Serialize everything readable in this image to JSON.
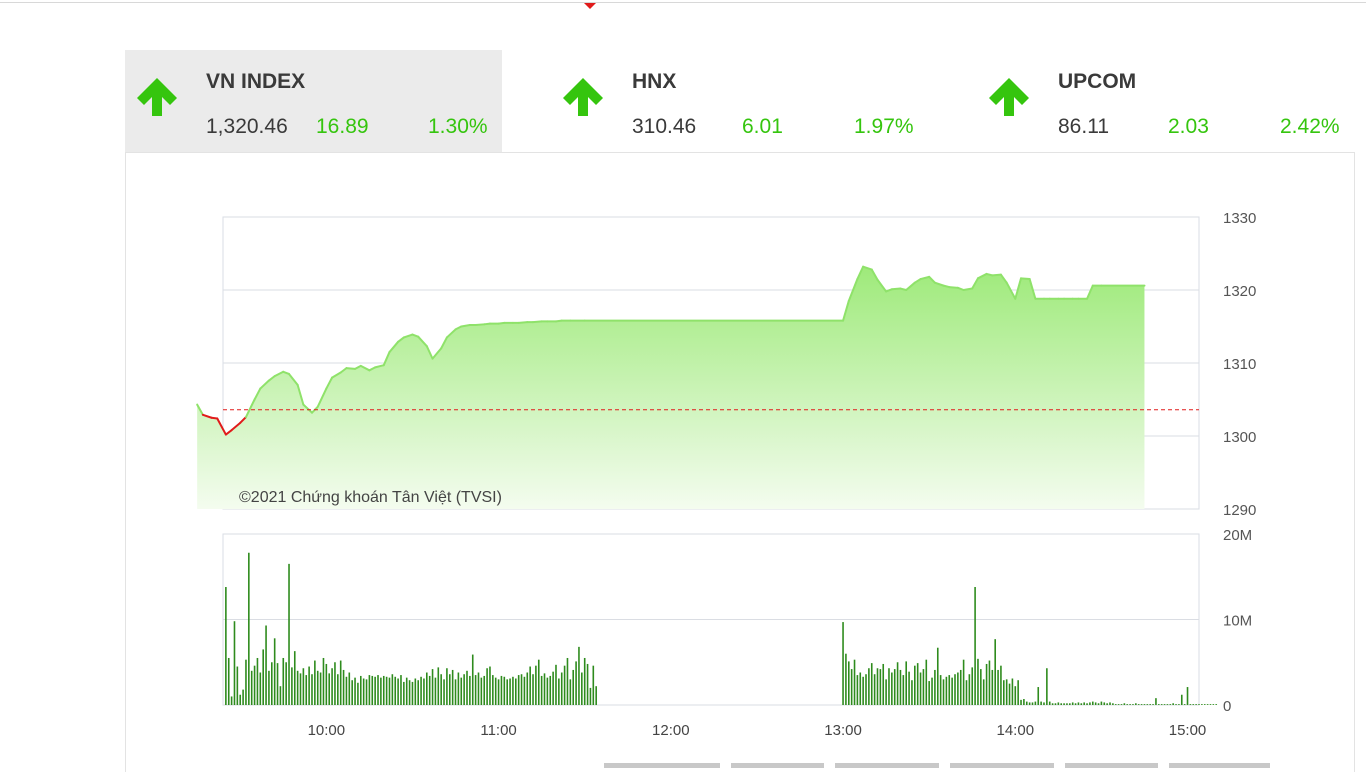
{
  "indices": [
    {
      "name": "VN INDEX",
      "value": "1,320.46",
      "change": "16.89",
      "percent": "1.30%",
      "direction": "up",
      "active": true
    },
    {
      "name": "HNX",
      "value": "310.46",
      "change": "6.01",
      "percent": "1.97%",
      "direction": "up",
      "active": false
    },
    {
      "name": "UPCOM",
      "value": "86.11",
      "change": "2.03",
      "percent": "2.42%",
      "direction": "up",
      "active": false
    }
  ],
  "colors": {
    "up": "#35c50e",
    "down": "#e11b1b",
    "reference": "#e11b1b",
    "area_fill_top": "#9eea7a",
    "volume": "#2e8b1d"
  },
  "chart_data": [
    {
      "type": "area",
      "watermark": "©2021 Chứng khoán Tân Việt (TVSI)",
      "reference_value": 1303.6,
      "ylim": [
        1290,
        1330
      ],
      "y_ticks": [
        "1330",
        "1320",
        "1310",
        "1300",
        "1290"
      ],
      "grid": true,
      "series": [
        {
          "x": [
            "09:15",
            "09:17",
            "09:20",
            "09:22",
            "09:25",
            "09:27",
            "09:30",
            "09:32",
            "09:35",
            "09:37",
            "09:40",
            "09:42",
            "09:45",
            "09:47",
            "09:50",
            "09:52",
            "09:55",
            "09:57",
            "10:00",
            "10:02",
            "10:05",
            "10:07",
            "10:10",
            "10:12",
            "10:15",
            "10:17",
            "10:20",
            "10:22",
            "10:25",
            "10:27",
            "10:30",
            "10:32",
            "10:35",
            "10:37",
            "10:40",
            "10:42",
            "10:45",
            "10:47",
            "10:50",
            "10:52",
            "10:55",
            "10:57",
            "11:00",
            "11:02",
            "11:05",
            "11:07",
            "11:10",
            "11:12",
            "11:15",
            "11:17",
            "11:20",
            "11:22",
            "11:25",
            "11:30",
            "13:00",
            "13:02",
            "13:05",
            "13:07",
            "13:10",
            "13:12",
            "13:15",
            "13:17",
            "13:20",
            "13:22",
            "13:25",
            "13:27",
            "13:30",
            "13:32",
            "13:35",
            "13:37",
            "13:40",
            "13:42",
            "13:45",
            "13:47",
            "13:50",
            "13:52",
            "13:55",
            "13:57",
            "14:00",
            "14:02",
            "14:05",
            "14:07",
            "14:10",
            "14:12",
            "14:15",
            "14:17",
            "14:20",
            "14:22",
            "14:25",
            "14:27",
            "14:30",
            "14:45"
          ],
          "values": [
            1304.3,
            1302.9,
            1302.5,
            1302.4,
            1300.2,
            1300.8,
            1301.8,
            1302.6,
            1305.0,
            1306.5,
            1307.6,
            1308.2,
            1308.8,
            1308.5,
            1307.0,
            1304.3,
            1303.2,
            1304.0,
            1306.5,
            1308.0,
            1308.7,
            1309.3,
            1309.2,
            1309.6,
            1309.0,
            1309.4,
            1309.7,
            1311.5,
            1312.9,
            1313.5,
            1313.9,
            1313.6,
            1312.3,
            1310.6,
            1312.0,
            1313.5,
            1314.6,
            1315.0,
            1315.2,
            1315.2,
            1315.3,
            1315.4,
            1315.4,
            1315.5,
            1315.5,
            1315.5,
            1315.6,
            1315.6,
            1315.7,
            1315.7,
            1315.7,
            1315.8,
            1315.8,
            1315.8,
            1315.8,
            1318.5,
            1321.5,
            1323.2,
            1322.8,
            1321.4,
            1319.8,
            1320.1,
            1320.2,
            1320.0,
            1321.0,
            1321.5,
            1321.8,
            1321.0,
            1320.6,
            1320.4,
            1320.3,
            1320.0,
            1320.2,
            1321.6,
            1322.2,
            1322.0,
            1322.1,
            1321.0,
            1318.8,
            1321.6,
            1321.5,
            1318.8,
            1318.8,
            1318.8,
            1318.8,
            1318.8,
            1318.8,
            1318.8,
            1318.8,
            1320.6,
            1320.6,
            1320.6
          ]
        }
      ]
    },
    {
      "type": "bar",
      "ylim": [
        0,
        20000000
      ],
      "y_ticks": [
        "20M",
        "10M",
        "0"
      ],
      "x_ticks": [
        "10:00",
        "11:00",
        "12:00",
        "13:00",
        "14:00",
        "15:00"
      ],
      "x_tick_values": [
        "10:00",
        "11:00",
        "12:00",
        "13:00",
        "14:00",
        "15:00"
      ],
      "x_range": [
        "09:24",
        "15:04"
      ],
      "series": [
        {
          "start": "09:25",
          "step_minutes": 1,
          "values": [
            13800000,
            5500000,
            1000000,
            9800000,
            4500000,
            1200000,
            1800000,
            5300000,
            17800000,
            4000000,
            4600000,
            5500000,
            3800000,
            6500000,
            9300000,
            4000000,
            5000000,
            7800000,
            4900000,
            2200000,
            5500000,
            5000000,
            16500000,
            4400000,
            6300000,
            4000000,
            3700000,
            4300000,
            3500000,
            4500000,
            3600000,
            5200000,
            4000000,
            3800000,
            5500000,
            4800000,
            3700000,
            4300000,
            5000000,
            3600000,
            5200000,
            4100000,
            3300000,
            3800000,
            2900000,
            3200000,
            2600000,
            3400000,
            3100000,
            3000000,
            3500000,
            3400000,
            3300000,
            3500000,
            3200000,
            3400000,
            3300000,
            3200000,
            3600000,
            3300000,
            3100000,
            3500000,
            2700000,
            3200000,
            2900000,
            2700000,
            3100000,
            2900000,
            3300000,
            3100000,
            3800000,
            3400000,
            4200000,
            3200000,
            4400000,
            3600000,
            3000000,
            4300000,
            3600000,
            4100000,
            3000000,
            3800000,
            3200000,
            3600000,
            4000000,
            3400000,
            5900000,
            3500000,
            3800000,
            3200000,
            3400000,
            4300000,
            4500000,
            3500000,
            3200000,
            3000000,
            3400000,
            3300000,
            3000000,
            3100000,
            3300000,
            3100000,
            3500000,
            3600000,
            3300000,
            3800000,
            4500000,
            3600000,
            4600000,
            5300000,
            3400000,
            3700000,
            3200000,
            3400000,
            3900000,
            4700000,
            3100000,
            3800000,
            4600000,
            5500000,
            3000000,
            4100000,
            5100000,
            6800000,
            3800000,
            5500000,
            4800000,
            2000000,
            4600000,
            2200000
          ]
        },
        {
          "start": "13:00",
          "step_minutes": 1,
          "values": [
            9700000,
            6000000,
            5100000,
            4200000,
            5300000,
            3500000,
            3800000,
            3300000,
            3600000,
            4300000,
            4900000,
            3600000,
            4300000,
            4200000,
            4800000,
            3000000,
            4300000,
            3800000,
            4200000,
            5000000,
            4100000,
            3500000,
            5100000,
            3900000,
            2900000,
            4600000,
            4900000,
            3800000,
            4200000,
            5300000,
            2800000,
            3200000,
            4100000,
            6700000,
            3500000,
            3000000,
            3300000,
            3500000,
            3200000,
            3600000,
            3800000,
            4100000,
            5300000,
            2900000,
            3600000,
            4400000,
            13800000,
            5400000,
            4200000,
            3000000,
            4800000,
            5200000,
            4100000,
            7700000,
            4100000,
            4600000,
            2900000,
            3000000,
            2500000,
            3100000,
            2200000,
            2900000,
            600000,
            700000,
            400000,
            300000,
            300000,
            400000,
            2100000,
            400000,
            300000,
            4300000,
            400000,
            200000,
            200000,
            300000,
            200000,
            200000,
            200000,
            200000,
            300000,
            200000,
            300000,
            200000,
            300000,
            200000,
            300000,
            400000,
            300000,
            200000,
            400000,
            300000,
            200000,
            300000,
            200000,
            100000,
            100000,
            100000,
            200000,
            100000,
            100000,
            100000,
            200000,
            100000,
            100000,
            100000,
            100000,
            100000,
            100000,
            800000,
            100000,
            100000,
            100000,
            100000,
            100000,
            200000,
            100000,
            100000,
            1200000,
            100000,
            2100000,
            100000,
            100000,
            100000,
            100000,
            100000,
            100000,
            100000,
            100000,
            100000,
            100000
          ]
        }
      ]
    }
  ]
}
